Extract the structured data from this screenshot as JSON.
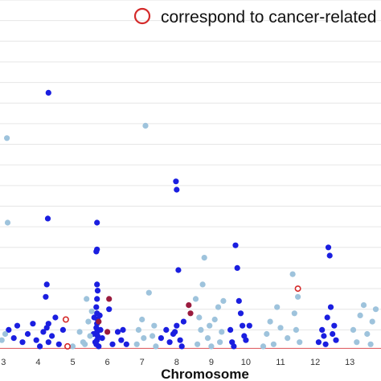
{
  "chart_data": {
    "type": "scatter",
    "title": "",
    "xlabel": "Chromosome",
    "ylabel": "",
    "xlim": [
      2.9,
      13.9
    ],
    "ylim": [
      0,
      17
    ],
    "grid": true,
    "legend_position": "top-right",
    "legend": {
      "label": "correspond to cancer-related"
    },
    "x_ticks": [
      3,
      4,
      5,
      6,
      7,
      8,
      9,
      10,
      11,
      12,
      13
    ],
    "threshold_line": {
      "y": 0.1,
      "color": "#e0646a"
    },
    "colors": {
      "odd_chromosome": "#1a1ee0",
      "even_chromosome": "#9ec3dc",
      "cancer_related_fill": "#9a1b3e",
      "cancer_related_ring": "#d42a2a",
      "grid": "#e6e6e6"
    },
    "series": [
      {
        "marker": "filled",
        "points": [
          [
            3.15,
            1.0
          ],
          [
            3.3,
            0.6
          ],
          [
            3.4,
            1.2
          ],
          [
            3.55,
            0.4
          ],
          [
            3.7,
            0.8
          ],
          [
            3.85,
            1.3
          ],
          [
            3.95,
            0.5
          ],
          [
            4.05,
            0.2
          ],
          [
            4.15,
            0.9
          ],
          [
            4.25,
            1.1
          ],
          [
            4.3,
            0.4
          ],
          [
            4.4,
            0.7
          ],
          [
            4.5,
            1.6
          ],
          [
            4.6,
            0.3
          ],
          [
            4.72,
            1.0
          ],
          [
            4.3,
            12.5
          ],
          [
            4.28,
            6.4
          ],
          [
            4.25,
            3.2
          ],
          [
            4.22,
            2.6
          ],
          [
            4.3,
            1.3
          ],
          [
            5.7,
            6.2
          ],
          [
            5.7,
            4.9
          ],
          [
            5.68,
            4.8
          ],
          [
            5.7,
            3.2
          ],
          [
            5.72,
            2.9
          ],
          [
            5.7,
            2.5
          ],
          [
            5.68,
            2.1
          ],
          [
            5.7,
            1.8
          ],
          [
            5.72,
            1.5
          ],
          [
            5.7,
            1.3
          ],
          [
            5.68,
            1.1
          ],
          [
            5.7,
            0.9
          ],
          [
            5.72,
            0.7
          ],
          [
            5.7,
            0.5
          ],
          [
            5.68,
            0.3
          ],
          [
            5.75,
            0.2
          ],
          [
            5.8,
            1.0
          ],
          [
            5.85,
            0.6
          ],
          [
            5.6,
            0.8
          ],
          [
            5.62,
            1.6
          ],
          [
            5.78,
            1.7
          ],
          [
            5.65,
            0.4
          ],
          [
            6.05,
            2.0
          ],
          [
            6.15,
            0.3
          ],
          [
            6.3,
            0.9
          ],
          [
            6.4,
            0.5
          ],
          [
            6.45,
            1.0
          ],
          [
            6.55,
            0.3
          ],
          [
            7.55,
            0.6
          ],
          [
            7.7,
            1.0
          ],
          [
            7.8,
            0.4
          ],
          [
            7.9,
            0.8
          ],
          [
            7.98,
            8.2
          ],
          [
            8.0,
            7.8
          ],
          [
            8.05,
            3.9
          ],
          [
            8.0,
            1.2
          ],
          [
            8.1,
            0.5
          ],
          [
            8.2,
            1.4
          ],
          [
            7.95,
            0.9
          ],
          [
            8.15,
            0.2
          ],
          [
            9.7,
            5.1
          ],
          [
            9.75,
            4.0
          ],
          [
            9.8,
            2.4
          ],
          [
            9.85,
            1.8
          ],
          [
            9.9,
            1.2
          ],
          [
            9.95,
            0.7
          ],
          [
            9.6,
            0.4
          ],
          [
            9.55,
            1.0
          ],
          [
            9.65,
            0.2
          ],
          [
            10.0,
            0.5
          ],
          [
            10.1,
            1.2
          ],
          [
            12.1,
            0.4
          ],
          [
            12.2,
            1.0
          ],
          [
            12.3,
            0.3
          ],
          [
            12.35,
            1.6
          ],
          [
            12.38,
            5.0
          ],
          [
            12.42,
            4.6
          ],
          [
            12.45,
            2.1
          ],
          [
            12.5,
            0.8
          ],
          [
            12.55,
            1.2
          ],
          [
            12.6,
            0.5
          ],
          [
            12.25,
            0.7
          ]
        ]
      },
      {
        "marker": "filled",
        "points": [
          [
            3.1,
            10.3
          ],
          [
            3.12,
            6.2
          ],
          [
            2.95,
            0.5
          ],
          [
            3.05,
            0.8
          ],
          [
            5.0,
            0.2
          ],
          [
            5.2,
            0.9
          ],
          [
            5.3,
            0.4
          ],
          [
            5.45,
            1.4
          ],
          [
            5.5,
            0.7
          ],
          [
            5.4,
            2.5
          ],
          [
            5.55,
            1.9
          ],
          [
            5.35,
            0.3
          ],
          [
            6.9,
            1.0
          ],
          [
            7.0,
            1.5
          ],
          [
            7.05,
            0.6
          ],
          [
            7.2,
            2.8
          ],
          [
            7.3,
            0.7
          ],
          [
            7.35,
            1.2
          ],
          [
            7.1,
            10.9
          ],
          [
            7.4,
            0.2
          ],
          [
            6.85,
            0.3
          ],
          [
            8.55,
            2.5
          ],
          [
            8.6,
            0.3
          ],
          [
            8.7,
            1.0
          ],
          [
            8.75,
            3.2
          ],
          [
            8.8,
            4.5
          ],
          [
            8.9,
            0.6
          ],
          [
            9.1,
            1.5
          ],
          [
            9.2,
            2.1
          ],
          [
            9.3,
            0.9
          ],
          [
            9.35,
            2.4
          ],
          [
            9.0,
            0.2
          ],
          [
            8.65,
            1.6
          ],
          [
            8.95,
            1.2
          ],
          [
            9.25,
            0.4
          ],
          [
            10.6,
            0.8
          ],
          [
            10.7,
            1.4
          ],
          [
            10.8,
            0.3
          ],
          [
            10.9,
            2.1
          ],
          [
            11.0,
            1.1
          ],
          [
            11.2,
            0.6
          ],
          [
            11.35,
            3.7
          ],
          [
            11.4,
            1.8
          ],
          [
            11.5,
            2.6
          ],
          [
            11.55,
            0.4
          ],
          [
            11.45,
            1.0
          ],
          [
            10.5,
            0.2
          ],
          [
            13.1,
            1.0
          ],
          [
            13.2,
            0.4
          ],
          [
            13.3,
            1.7
          ],
          [
            13.4,
            2.2
          ],
          [
            13.5,
            0.8
          ],
          [
            13.75,
            2.0
          ],
          [
            13.6,
            0.3
          ],
          [
            13.65,
            1.4
          ]
        ]
      },
      {
        "marker": "filled",
        "points": [
          [
            5.75,
            1.4
          ],
          [
            6.05,
            2.5
          ],
          [
            6.0,
            0.9
          ],
          [
            8.35,
            2.2
          ],
          [
            8.4,
            1.8
          ]
        ]
      },
      {
        "marker": "open",
        "points": [
          [
            4.8,
            1.5
          ],
          [
            4.85,
            0.2
          ],
          [
            11.5,
            3.0
          ]
        ]
      }
    ]
  }
}
